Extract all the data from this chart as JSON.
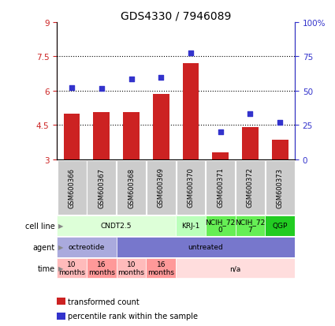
{
  "title": "GDS4330 / 7946089",
  "samples": [
    "GSM600366",
    "GSM600367",
    "GSM600368",
    "GSM600369",
    "GSM600370",
    "GSM600371",
    "GSM600372",
    "GSM600373"
  ],
  "bar_values": [
    5.0,
    5.05,
    5.05,
    5.85,
    7.2,
    3.3,
    4.4,
    3.85
  ],
  "dot_values": [
    6.15,
    6.1,
    6.5,
    6.6,
    7.65,
    4.2,
    5.0,
    4.6
  ],
  "ylim": [
    3.0,
    9.0
  ],
  "y2lim": [
    0,
    100
  ],
  "yticks_left": [
    3.0,
    4.5,
    6.0,
    7.5,
    9.0
  ],
  "yticks_right": [
    0,
    25,
    50,
    75,
    100
  ],
  "ytick_labels_left": [
    "3",
    "4.5",
    "6",
    "7.5",
    "9"
  ],
  "ytick_labels_right": [
    "0",
    "25",
    "50",
    "75",
    "100%"
  ],
  "hlines": [
    4.5,
    6.0,
    7.5
  ],
  "bar_color": "#cc2222",
  "dot_color": "#3333cc",
  "cell_line_groups": [
    {
      "label": "CNDT2.5",
      "start": 0,
      "end": 4,
      "color": "#ddffd8"
    },
    {
      "label": "KRJ-1",
      "start": 4,
      "end": 5,
      "color": "#bbffbb"
    },
    {
      "label": "NCIH_72\n0",
      "start": 5,
      "end": 6,
      "color": "#66ee55"
    },
    {
      "label": "NCIH_72\n7",
      "start": 6,
      "end": 7,
      "color": "#66ee55"
    },
    {
      "label": "QGP",
      "start": 7,
      "end": 8,
      "color": "#22cc22"
    }
  ],
  "agent_groups": [
    {
      "label": "octreotide",
      "start": 0,
      "end": 2,
      "color": "#aaaadd"
    },
    {
      "label": "untreated",
      "start": 2,
      "end": 8,
      "color": "#7777cc"
    }
  ],
  "time_groups": [
    {
      "label": "10\nmonths",
      "start": 0,
      "end": 1,
      "color": "#ffbbbb"
    },
    {
      "label": "16\nmonths",
      "start": 1,
      "end": 2,
      "color": "#ff9999"
    },
    {
      "label": "10\nmonths",
      "start": 2,
      "end": 3,
      "color": "#ffbbbb"
    },
    {
      "label": "16\nmonths",
      "start": 3,
      "end": 4,
      "color": "#ff9999"
    },
    {
      "label": "n/a",
      "start": 4,
      "end": 8,
      "color": "#ffdddd"
    }
  ],
  "row_labels": [
    "cell line",
    "agent",
    "time"
  ],
  "sample_box_color": "#cccccc",
  "legend_items": [
    {
      "label": "transformed count",
      "color": "#cc2222"
    },
    {
      "label": "percentile rank within the sample",
      "color": "#3333cc"
    }
  ]
}
